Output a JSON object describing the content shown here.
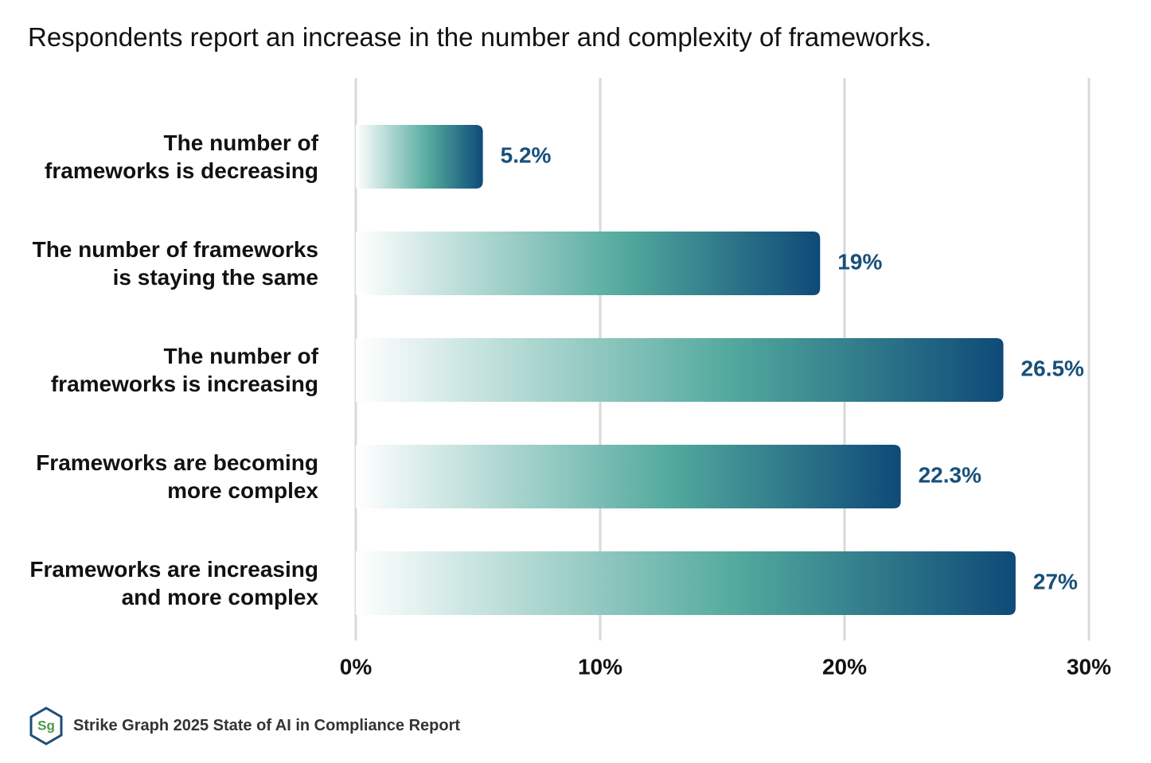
{
  "chart_data": {
    "type": "bar",
    "orientation": "horizontal",
    "title": "Respondents report an increase in the number and complexity of frameworks.",
    "categories": [
      "The number of\nframeworks is decreasing",
      "The number of frameworks\nis staying the same",
      "The number of\nframeworks is increasing",
      "Frameworks are becoming\nmore complex",
      "Frameworks are increasing\nand more complex"
    ],
    "values": [
      5.2,
      19,
      26.5,
      22.3,
      27
    ],
    "value_labels": [
      "5.2%",
      "19%",
      "26.5%",
      "22.3%",
      "27%"
    ],
    "gradient": [
      "#ffffff",
      "#52a99d",
      "#0e4a78"
    ],
    "label_color": "#17507a",
    "xlim": [
      0,
      30
    ],
    "xticks": [
      {
        "value": 0,
        "label": "0%"
      },
      {
        "value": 10,
        "label": "10%"
      },
      {
        "value": 20,
        "label": "20%"
      },
      {
        "value": 30,
        "label": "30%"
      }
    ],
    "grid": true,
    "source": "Strike Graph 2025 State of AI in Compliance Report",
    "logo": "Sg"
  }
}
